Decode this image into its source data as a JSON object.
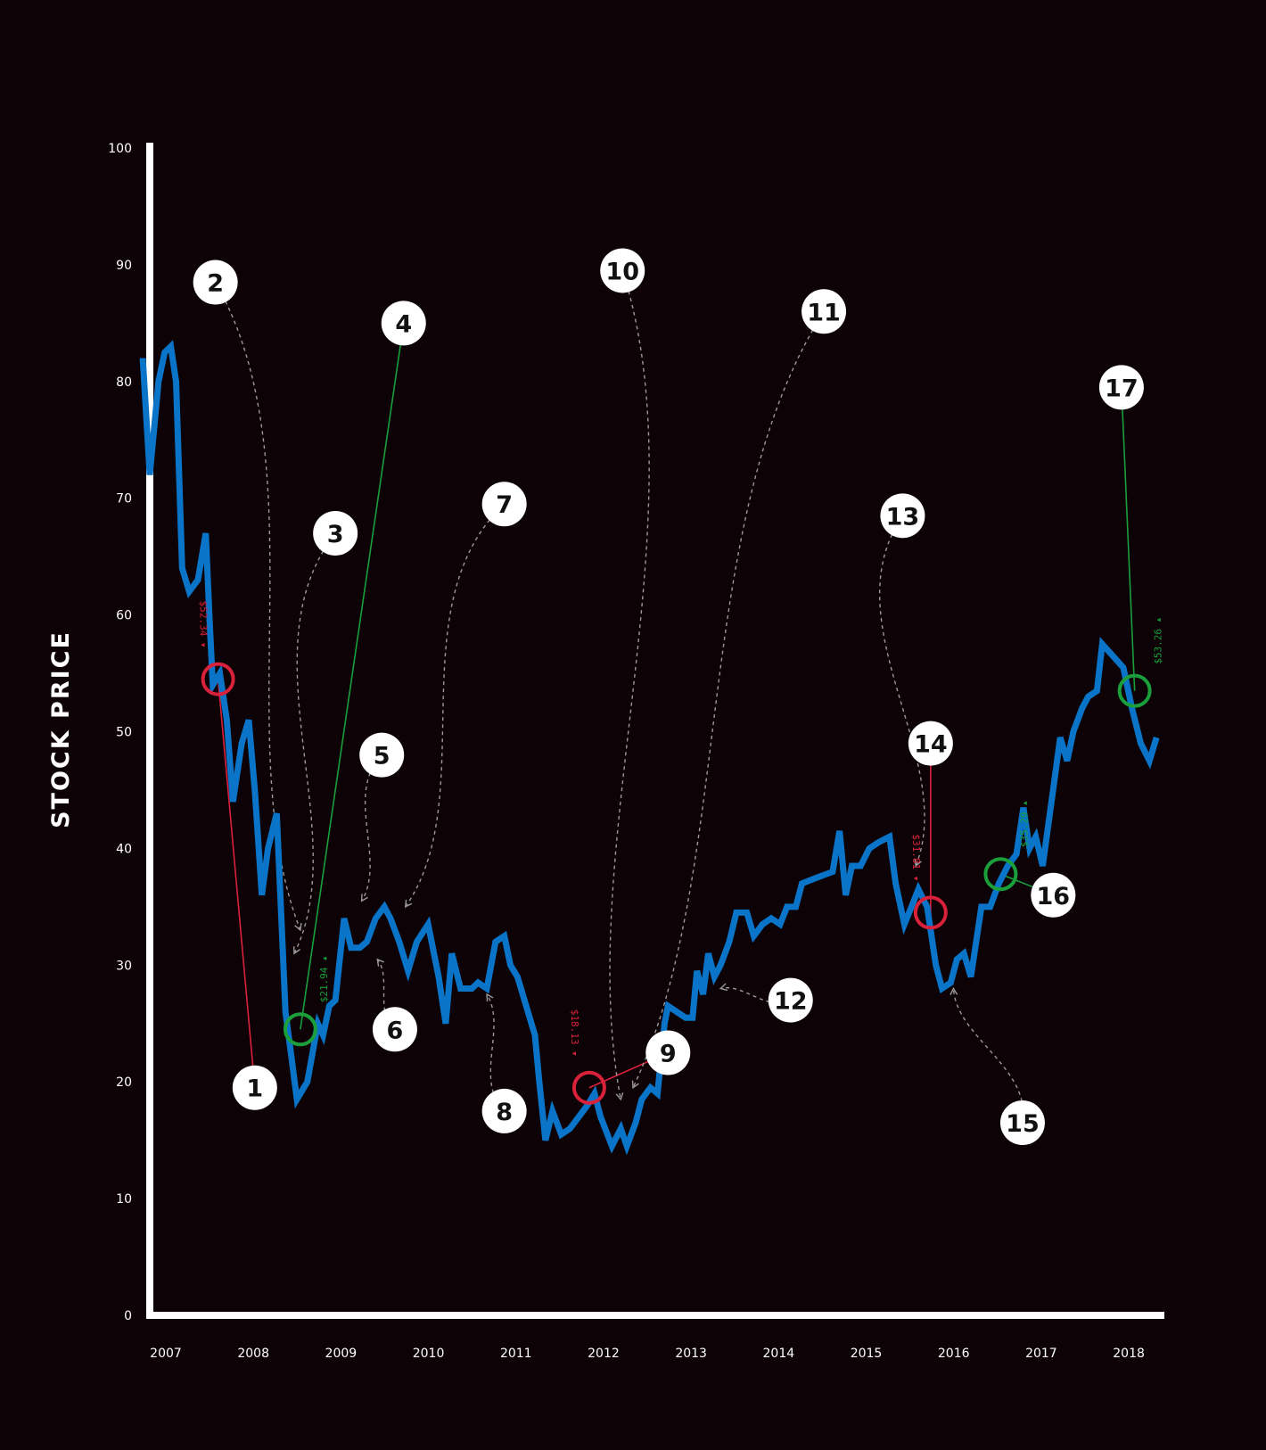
{
  "chart_data": {
    "type": "line",
    "title": "",
    "xlabel": "",
    "ylabel": "STOCK PRICE",
    "x_ticks": [
      "2007",
      "2008",
      "2009",
      "2010",
      "2011",
      "2012",
      "2013",
      "2014",
      "2015",
      "2016",
      "2017",
      "2018"
    ],
    "y_ticks": [
      "0",
      "10",
      "20",
      "30",
      "40",
      "50",
      "60",
      "70",
      "80",
      "90",
      "100"
    ],
    "xlim": [
      2007,
      2018.6
    ],
    "ylim": [
      0,
      100
    ],
    "grid": false,
    "legend": "none",
    "colors": {
      "background": "#0d0205",
      "axis": "#ffffff",
      "line": "#0a74c8",
      "down": "#d8213a",
      "up": "#1a9f3c",
      "dashed": "#9a9a9a"
    },
    "series": [
      {
        "points": [
          [
            2006.92,
            82
          ],
          [
            2007.0,
            72
          ],
          [
            2007.1,
            80
          ],
          [
            2007.17,
            82.5
          ],
          [
            2007.24,
            83
          ],
          [
            2007.3,
            80
          ],
          [
            2007.37,
            64
          ],
          [
            2007.45,
            62
          ],
          [
            2007.55,
            63
          ],
          [
            2007.64,
            67
          ],
          [
            2007.68,
            60
          ],
          [
            2007.72,
            54
          ],
          [
            2007.8,
            55
          ],
          [
            2007.88,
            51
          ],
          [
            2007.95,
            44
          ],
          [
            2008.05,
            49
          ],
          [
            2008.13,
            51
          ],
          [
            2008.2,
            45
          ],
          [
            2008.28,
            36
          ],
          [
            2008.35,
            40
          ],
          [
            2008.45,
            43
          ],
          [
            2008.55,
            26
          ],
          [
            2008.62,
            22
          ],
          [
            2008.68,
            18.5
          ],
          [
            2008.8,
            20
          ],
          [
            2008.92,
            25
          ],
          [
            2008.98,
            24
          ],
          [
            2009.05,
            26.5
          ],
          [
            2009.12,
            27
          ],
          [
            2009.22,
            34
          ],
          [
            2009.3,
            31.5
          ],
          [
            2009.4,
            31.5
          ],
          [
            2009.48,
            32
          ],
          [
            2009.58,
            34
          ],
          [
            2009.68,
            35
          ],
          [
            2009.75,
            34
          ],
          [
            2009.85,
            32
          ],
          [
            2009.95,
            29.5
          ],
          [
            2010.05,
            32
          ],
          [
            2010.18,
            33.5
          ],
          [
            2010.3,
            29
          ],
          [
            2010.38,
            25
          ],
          [
            2010.45,
            31
          ],
          [
            2010.55,
            28
          ],
          [
            2010.68,
            28
          ],
          [
            2010.75,
            28.5
          ],
          [
            2010.85,
            28
          ],
          [
            2010.95,
            32
          ],
          [
            2011.05,
            32.5
          ],
          [
            2011.12,
            30
          ],
          [
            2011.2,
            29
          ],
          [
            2011.32,
            26
          ],
          [
            2011.4,
            24
          ],
          [
            2011.45,
            20
          ],
          [
            2011.52,
            15
          ],
          [
            2011.6,
            17.5
          ],
          [
            2011.7,
            15.5
          ],
          [
            2011.8,
            16
          ],
          [
            2011.9,
            17
          ],
          [
            2012.0,
            18
          ],
          [
            2012.08,
            19
          ],
          [
            2012.15,
            17
          ],
          [
            2012.28,
            14.5
          ],
          [
            2012.38,
            16
          ],
          [
            2012.45,
            14.5
          ],
          [
            2012.55,
            16.5
          ],
          [
            2012.62,
            18.5
          ],
          [
            2012.72,
            19.5
          ],
          [
            2012.8,
            19
          ],
          [
            2012.88,
            25
          ],
          [
            2012.92,
            26.5
          ],
          [
            2013.02,
            26
          ],
          [
            2013.12,
            25.5
          ],
          [
            2013.2,
            25.5
          ],
          [
            2013.25,
            29.5
          ],
          [
            2013.32,
            27.5
          ],
          [
            2013.38,
            31
          ],
          [
            2013.45,
            29
          ],
          [
            2013.52,
            30
          ],
          [
            2013.62,
            32
          ],
          [
            2013.7,
            34.5
          ],
          [
            2013.82,
            34.5
          ],
          [
            2013.9,
            32.5
          ],
          [
            2014.0,
            33.5
          ],
          [
            2014.1,
            34
          ],
          [
            2014.2,
            33.5
          ],
          [
            2014.28,
            35
          ],
          [
            2014.38,
            35
          ],
          [
            2014.45,
            37
          ],
          [
            2014.62,
            37.5
          ],
          [
            2014.8,
            38
          ],
          [
            2014.88,
            41.5
          ],
          [
            2014.95,
            36
          ],
          [
            2015.02,
            38.5
          ],
          [
            2015.12,
            38.5
          ],
          [
            2015.22,
            40
          ],
          [
            2015.32,
            40.5
          ],
          [
            2015.45,
            41
          ],
          [
            2015.52,
            37
          ],
          [
            2015.62,
            33.5
          ],
          [
            2015.7,
            35
          ],
          [
            2015.78,
            36.5
          ],
          [
            2015.88,
            35
          ],
          [
            2015.98,
            30
          ],
          [
            2016.05,
            28
          ],
          [
            2016.15,
            28.5
          ],
          [
            2016.22,
            30.5
          ],
          [
            2016.3,
            31
          ],
          [
            2016.38,
            29
          ],
          [
            2016.5,
            35
          ],
          [
            2016.6,
            35
          ],
          [
            2016.7,
            37
          ],
          [
            2016.8,
            38.5
          ],
          [
            2016.9,
            39.5
          ],
          [
            2016.98,
            43.5
          ],
          [
            2017.05,
            40
          ],
          [
            2017.12,
            41
          ],
          [
            2017.2,
            38.5
          ],
          [
            2017.3,
            44
          ],
          [
            2017.4,
            49.5
          ],
          [
            2017.48,
            47.5
          ],
          [
            2017.55,
            50
          ],
          [
            2017.65,
            52
          ],
          [
            2017.72,
            53
          ],
          [
            2017.82,
            53.5
          ],
          [
            2017.88,
            57.5
          ],
          [
            2018.0,
            56.5
          ],
          [
            2018.12,
            55.5
          ],
          [
            2018.22,
            52
          ],
          [
            2018.32,
            49
          ],
          [
            2018.42,
            47.5
          ],
          [
            2018.5,
            49.5
          ]
        ]
      }
    ],
    "annotations": [
      {
        "number": "1",
        "x": 2008.2,
        "y": 19.5,
        "target": [
          2007.78,
          54.5
        ],
        "line_style": "solid",
        "color": "red",
        "price": "$52.34 ▾"
      },
      {
        "number": "2",
        "x": 2007.75,
        "y": 88.5,
        "target": [
          2008.72,
          33
        ],
        "line_style": "dashed",
        "color": "gray"
      },
      {
        "number": "3",
        "x": 2009.12,
        "y": 67,
        "target": [
          2008.65,
          31
        ],
        "line_style": "dashed",
        "color": "gray"
      },
      {
        "number": "4",
        "x": 2009.9,
        "y": 85,
        "target": [
          2008.72,
          24.5
        ],
        "line_style": "solid",
        "color": "green",
        "price": "$21.94 ▴"
      },
      {
        "number": "5",
        "x": 2009.65,
        "y": 48,
        "target": [
          2009.42,
          35.5
        ],
        "line_style": "dashed",
        "color": "gray"
      },
      {
        "number": "6",
        "x": 2009.8,
        "y": 24.5,
        "target": [
          2009.6,
          30.5
        ],
        "line_style": "dashed",
        "color": "gray"
      },
      {
        "number": "7",
        "x": 2011.05,
        "y": 69.5,
        "target": [
          2009.92,
          35
        ],
        "line_style": "dashed",
        "color": "gray"
      },
      {
        "number": "8",
        "x": 2011.05,
        "y": 17.5,
        "target": [
          2010.85,
          27.5
        ],
        "line_style": "dashed",
        "color": "gray"
      },
      {
        "number": "9",
        "x": 2012.92,
        "y": 22.5,
        "target": [
          2012.02,
          19.5
        ],
        "line_style": "solid",
        "color": "red",
        "price": "$18.13 ▾"
      },
      {
        "number": "10",
        "x": 2012.4,
        "y": 89.5,
        "target": [
          2012.38,
          18.5
        ],
        "line_style": "dashed",
        "color": "gray"
      },
      {
        "number": "11",
        "x": 2014.7,
        "y": 86,
        "target": [
          2012.52,
          19.5
        ],
        "line_style": "dashed",
        "color": "gray"
      },
      {
        "number": "12",
        "x": 2014.32,
        "y": 27,
        "target": [
          2013.52,
          28
        ],
        "line_style": "dashed",
        "color": "gray"
      },
      {
        "number": "13",
        "x": 2015.6,
        "y": 68.5,
        "target": [
          2015.75,
          38.5
        ],
        "line_style": "dashed",
        "color": "gray"
      },
      {
        "number": "14",
        "x": 2015.92,
        "y": 49,
        "target": [
          2015.92,
          34.5
        ],
        "line_style": "solid",
        "color": "red",
        "price": "$31.81 ▾"
      },
      {
        "number": "15",
        "x": 2016.97,
        "y": 16.5,
        "target": [
          2016.18,
          28
        ],
        "line_style": "dashed",
        "color": "gray"
      },
      {
        "number": "16",
        "x": 2017.32,
        "y": 36,
        "target": [
          2016.72,
          37.8
        ],
        "line_style": "solid",
        "color": "green",
        "price": "$35.29 ▴"
      },
      {
        "number": "17",
        "x": 2018.1,
        "y": 79.5,
        "target": [
          2018.25,
          53.5
        ],
        "line_style": "solid",
        "color": "green",
        "price": "$53.26 ▴"
      }
    ]
  }
}
